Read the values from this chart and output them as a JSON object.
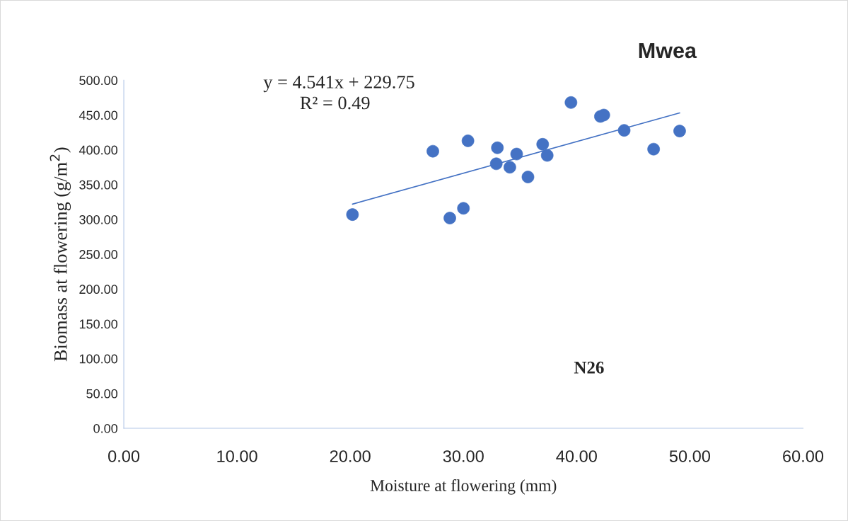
{
  "chart_data": {
    "type": "scatter",
    "title": "Mwea",
    "xlabel": "Moisture at flowering (mm)",
    "ylabel": "Biomass at flowering (g/m$^{2}$)",
    "annotations": [
      "y = 4.541x + 229.75",
      "R² = 0.49",
      "N26"
    ],
    "x": [
      20.2,
      27.3,
      30.4,
      28.8,
      30.0,
      33.0,
      32.9,
      34.7,
      34.1,
      35.7,
      37.0,
      37.4,
      39.5,
      42.1,
      42.4,
      44.2,
      46.8,
      49.1
    ],
    "series": [
      {
        "color": "#4472c4",
        "values": [
          307,
          398,
          413,
          302,
          316,
          403,
          380,
          394,
          375,
          361,
          408,
          392,
          468,
          448,
          450,
          428,
          401,
          427
        ]
      },
      {
        "type": "line",
        "marker": "none",
        "color": "#4472c4",
        "x": [
          20.2,
          49.1
        ],
        "values": [
          322,
          453
        ]
      }
    ],
    "xlim": [
      0,
      60
    ],
    "ylim": [
      0,
      500
    ],
    "xticks": [
      {
        "value": 0,
        "label": "0.00"
      },
      {
        "value": 10,
        "label": "10.00"
      },
      {
        "value": 20,
        "label": "20.00"
      },
      {
        "value": 30,
        "label": "30.00"
      },
      {
        "value": 40,
        "label": "40.00"
      },
      {
        "value": 50,
        "label": "50.00"
      },
      {
        "value": 60,
        "label": "60.00"
      }
    ],
    "yticks": [
      {
        "value": 0,
        "label": "0.00"
      },
      {
        "value": 50,
        "label": "50.00"
      },
      {
        "value": 100,
        "label": "100.00"
      },
      {
        "value": 150,
        "label": "150.00"
      },
      {
        "value": 200,
        "label": "200.00"
      },
      {
        "value": 250,
        "label": "250.00"
      },
      {
        "value": 300,
        "label": "300.00"
      },
      {
        "value": 350,
        "label": "350.00"
      },
      {
        "value": 400,
        "label": "400.00"
      },
      {
        "value": 450,
        "label": "450.00"
      },
      {
        "value": 500,
        "label": "500.00"
      }
    ],
    "grid": false,
    "marker": "circle",
    "legend": false
  }
}
